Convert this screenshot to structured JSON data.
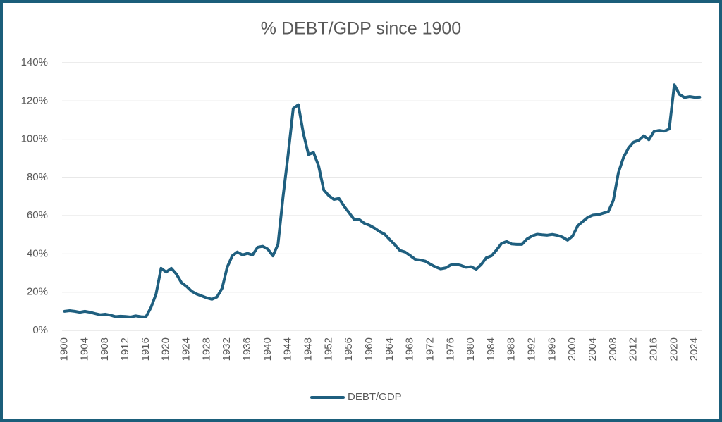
{
  "chart_data": {
    "type": "line",
    "title": "% DEBT/GDP since 1900",
    "x": [
      1900,
      1901,
      1902,
      1903,
      1904,
      1905,
      1906,
      1907,
      1908,
      1909,
      1910,
      1911,
      1912,
      1913,
      1914,
      1915,
      1916,
      1917,
      1918,
      1919,
      1920,
      1921,
      1922,
      1923,
      1924,
      1925,
      1926,
      1927,
      1928,
      1929,
      1930,
      1931,
      1932,
      1933,
      1934,
      1935,
      1936,
      1937,
      1938,
      1939,
      1940,
      1941,
      1942,
      1943,
      1944,
      1945,
      1946,
      1947,
      1948,
      1949,
      1950,
      1951,
      1952,
      1953,
      1954,
      1955,
      1956,
      1957,
      1958,
      1959,
      1960,
      1961,
      1962,
      1963,
      1964,
      1965,
      1966,
      1967,
      1968,
      1969,
      1970,
      1971,
      1972,
      1973,
      1974,
      1975,
      1976,
      1977,
      1978,
      1979,
      1980,
      1981,
      1982,
      1983,
      1984,
      1985,
      1986,
      1987,
      1988,
      1989,
      1990,
      1991,
      1992,
      1993,
      1994,
      1995,
      1996,
      1997,
      1998,
      1999,
      2000,
      2001,
      2002,
      2003,
      2004,
      2005,
      2006,
      2007,
      2008,
      2009,
      2010,
      2011,
      2012,
      2013,
      2014,
      2015,
      2016,
      2017,
      2018,
      2019,
      2020,
      2021,
      2022,
      2023,
      2024,
      2025
    ],
    "series": [
      {
        "name": "DEBT/GDP",
        "color": "#1f5f7f",
        "values": [
          10,
          10.3,
          10,
          9.5,
          10,
          9.5,
          8.8,
          8.2,
          8.5,
          8,
          7.2,
          7.4,
          7.3,
          7,
          7.6,
          7.2,
          7,
          12,
          19,
          32.5,
          30.5,
          32.5,
          29.5,
          25,
          23,
          20.5,
          19,
          18,
          17,
          16.3,
          17.5,
          22,
          33,
          39,
          41,
          39.5,
          40.3,
          39.5,
          43.5,
          44,
          42.5,
          39,
          45,
          70,
          92,
          116,
          118,
          103,
          92,
          93,
          86,
          73.5,
          70.5,
          68.5,
          69,
          65,
          61.5,
          58,
          58,
          56,
          55,
          53.5,
          51.7,
          50.3,
          47.5,
          44.8,
          41.8,
          41,
          39.2,
          37.2,
          36.8,
          36.2,
          34.6,
          33.2,
          32.2,
          32.7,
          34.2,
          34.6,
          34,
          33,
          33.3,
          32,
          34.5,
          38,
          39,
          42,
          45.5,
          46.5,
          45.2,
          45,
          45,
          47.8,
          49.4,
          50.3,
          50,
          49.8,
          50.2,
          49.7,
          48.8,
          47.2,
          49.4,
          54.8,
          57,
          59.2,
          60.3,
          60.5,
          61.3,
          62,
          68,
          82.5,
          90.5,
          95.5,
          98.5,
          99.4,
          101.8,
          99.7,
          104,
          104.6,
          104.2,
          105.3,
          128.5,
          123.5,
          121.8,
          122.3,
          121.9,
          122
        ]
      }
    ],
    "xlim": [
      1899.5,
      2025.5
    ],
    "xticks": [
      1900,
      1904,
      1908,
      1912,
      1916,
      1920,
      1924,
      1928,
      1932,
      1936,
      1940,
      1944,
      1948,
      1952,
      1956,
      1960,
      1964,
      1968,
      1972,
      1976,
      1980,
      1984,
      1988,
      1992,
      1996,
      2000,
      2004,
      2008,
      2012,
      2016,
      2020,
      2024
    ],
    "ylim": [
      0,
      140
    ],
    "yticks": [
      {
        "value": 0,
        "label": "0%"
      },
      {
        "value": 20,
        "label": "20%"
      },
      {
        "value": 40,
        "label": "40%"
      },
      {
        "value": 60,
        "label": "60%"
      },
      {
        "value": 80,
        "label": "80%"
      },
      {
        "value": 100,
        "label": "100%"
      },
      {
        "value": 120,
        "label": "120%"
      },
      {
        "value": 140,
        "label": "140%"
      }
    ],
    "grid": true,
    "legend": "bottom"
  }
}
